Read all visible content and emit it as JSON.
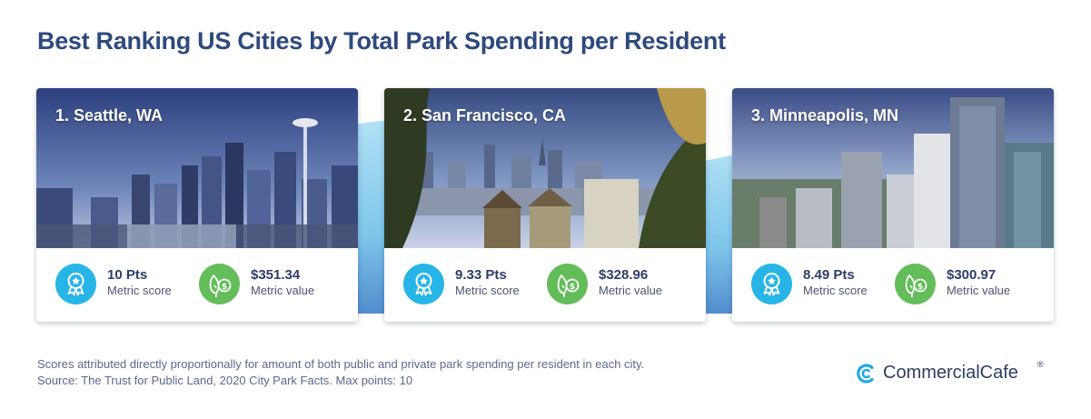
{
  "header": {
    "title": "Best Ranking US Cities by Total Park Spending per Resident"
  },
  "cards": [
    {
      "title": "1. Seattle, WA",
      "score": "10 Pts",
      "score_label": "Metric score",
      "value": "$351.34",
      "value_label": "Metric value"
    },
    {
      "title": "2. San Francisco, CA",
      "score": "9.33 Pts",
      "score_label": "Metric score",
      "value": "$328.96",
      "value_label": "Metric value"
    },
    {
      "title": "3. Minneapolis, MN",
      "score": "8.49 Pts",
      "score_label": "Metric score",
      "value": "$300.97",
      "value_label": "Metric value"
    }
  ],
  "footnote": {
    "line1": "Scores attributed directly proportionally for amount of both public and private park spending per resident in each city.",
    "line2": "Source: The Trust for Public Land, 2020 City Park Facts. Max points: 10"
  },
  "logo": {
    "name": "CommercialCafe",
    "mark": "®"
  },
  "colors": {
    "title": "#2e4a7d",
    "score_icon": "#27b5e8",
    "value_icon": "#63bd58",
    "wave": "#8fd3f0"
  },
  "icons": {
    "score": "award-ribbon-icon",
    "value": "money-tree-icon",
    "logo": "commercialcafe-logo-icon"
  }
}
